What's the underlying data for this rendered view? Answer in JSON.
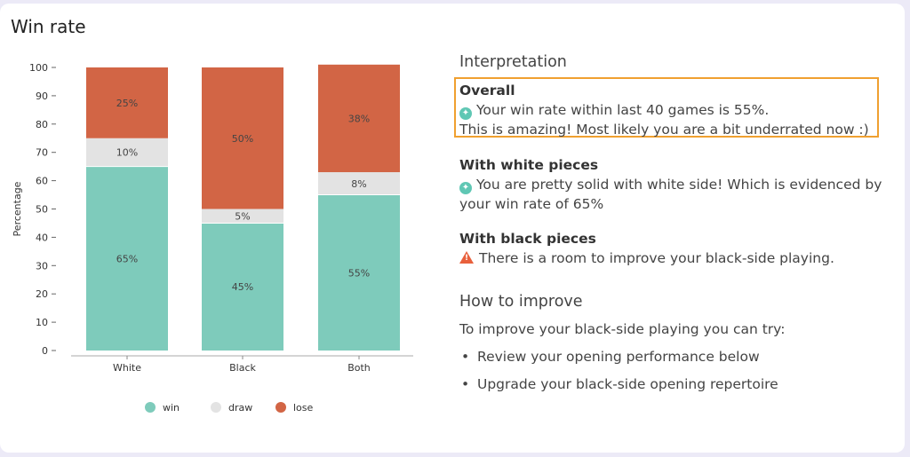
{
  "page_title": "Win rate",
  "chart_data": {
    "type": "bar",
    "stacked": true,
    "categories": [
      "White",
      "Black",
      "Both"
    ],
    "series": [
      {
        "name": "win",
        "color": "#7ecbbb",
        "values": [
          65,
          45,
          55
        ]
      },
      {
        "name": "draw",
        "color": "#e3e3e3",
        "values": [
          10,
          5,
          8
        ]
      },
      {
        "name": "lose",
        "color": "#d26545",
        "values": [
          25,
          50,
          38
        ]
      }
    ],
    "ylabel": "Percentage",
    "ylim": [
      0,
      100
    ],
    "yticks": [
      0,
      10,
      20,
      30,
      40,
      50,
      60,
      70,
      80,
      90,
      100
    ],
    "legend_position": "bottom"
  },
  "interpretation": {
    "heading": "Interpretation",
    "overall": {
      "title": "Overall",
      "line1": "Your win rate within last 40 games is 55%.",
      "line2": "This is amazing! Most likely you are a bit underrated now :)"
    },
    "white": {
      "title": "With white pieces",
      "text": "You are pretty solid with white side! Which is evidenced by your win rate of 65%"
    },
    "black": {
      "title": "With black pieces",
      "text": "There is a room to improve your black-side playing."
    }
  },
  "improve": {
    "heading": "How to improve",
    "intro": "To improve your black-side playing you can try:",
    "tips": [
      "Review your opening performance below",
      "Upgrade your black-side opening repertoire"
    ]
  }
}
